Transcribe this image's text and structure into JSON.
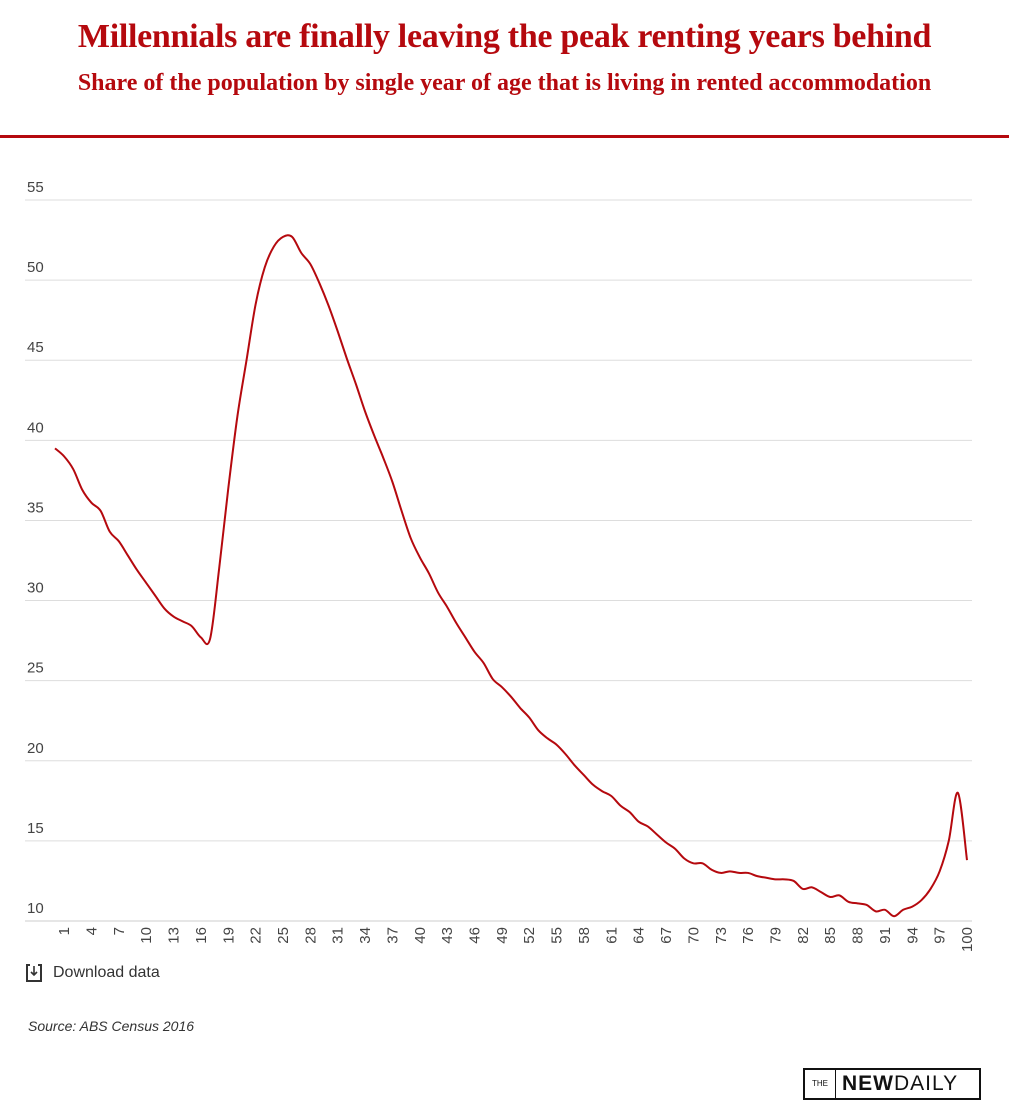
{
  "header": {
    "title": "Millennials are finally leaving the peak renting years behind",
    "subtitle": "Share of the population by single year of age that is living in rented accommodation"
  },
  "chart_data": {
    "type": "line",
    "title": "Millennials are finally leaving the peak renting years behind",
    "subtitle": "Share of the population by single year of age that is living in rented accommodation",
    "xlabel": "",
    "ylabel": "",
    "ylim": [
      10,
      55
    ],
    "yticks": [
      10,
      15,
      20,
      25,
      30,
      35,
      40,
      45,
      50,
      55
    ],
    "xticks": [
      1,
      4,
      7,
      10,
      13,
      16,
      19,
      22,
      25,
      28,
      31,
      34,
      37,
      40,
      43,
      46,
      49,
      52,
      55,
      58,
      61,
      64,
      67,
      70,
      73,
      76,
      79,
      82,
      85,
      88,
      91,
      94,
      97,
      100
    ],
    "grid": true,
    "color": "#b5090e",
    "x": [
      0,
      1,
      2,
      3,
      4,
      5,
      6,
      7,
      8,
      9,
      10,
      11,
      12,
      13,
      14,
      15,
      16,
      17,
      18,
      19,
      20,
      21,
      22,
      23,
      24,
      25,
      26,
      27,
      28,
      29,
      30,
      31,
      32,
      33,
      34,
      35,
      36,
      37,
      38,
      39,
      40,
      41,
      42,
      43,
      44,
      45,
      46,
      47,
      48,
      49,
      50,
      51,
      52,
      53,
      54,
      55,
      56,
      57,
      58,
      59,
      60,
      61,
      62,
      63,
      64,
      65,
      66,
      67,
      68,
      69,
      70,
      71,
      72,
      73,
      74,
      75,
      76,
      77,
      78,
      79,
      80,
      81,
      82,
      83,
      84,
      85,
      86,
      87,
      88,
      89,
      90,
      91,
      92,
      93,
      94,
      95,
      96,
      97,
      98,
      99,
      100
    ],
    "values": [
      39.5,
      39.0,
      38.2,
      36.9,
      36.1,
      35.6,
      34.3,
      33.7,
      32.8,
      31.9,
      31.1,
      30.3,
      29.5,
      29.0,
      28.7,
      28.4,
      27.7,
      27.6,
      32.0,
      37.0,
      41.5,
      45.0,
      48.5,
      50.8,
      52.1,
      52.7,
      52.7,
      51.7,
      51.0,
      49.8,
      48.4,
      46.8,
      45.1,
      43.5,
      41.8,
      40.3,
      38.9,
      37.4,
      35.6,
      33.9,
      32.7,
      31.7,
      30.5,
      29.6,
      28.6,
      27.7,
      26.8,
      26.1,
      25.1,
      24.6,
      24.0,
      23.3,
      22.7,
      21.9,
      21.4,
      21.0,
      20.4,
      19.7,
      19.1,
      18.5,
      18.1,
      17.8,
      17.2,
      16.8,
      16.2,
      15.9,
      15.4,
      14.9,
      14.5,
      13.9,
      13.6,
      13.6,
      13.2,
      13.0,
      13.1,
      13.0,
      13.0,
      12.8,
      12.7,
      12.6,
      12.6,
      12.5,
      12.0,
      12.1,
      11.8,
      11.5,
      11.6,
      11.2,
      11.1,
      11.0,
      10.6,
      10.7,
      10.3,
      10.7,
      10.9,
      11.3,
      12.0,
      13.1,
      15.0,
      18.0,
      13.8
    ]
  },
  "footer": {
    "download_label": "Download data",
    "source": "Source: ABS Census 2016",
    "logo_text": "THE NEWDAILY"
  }
}
